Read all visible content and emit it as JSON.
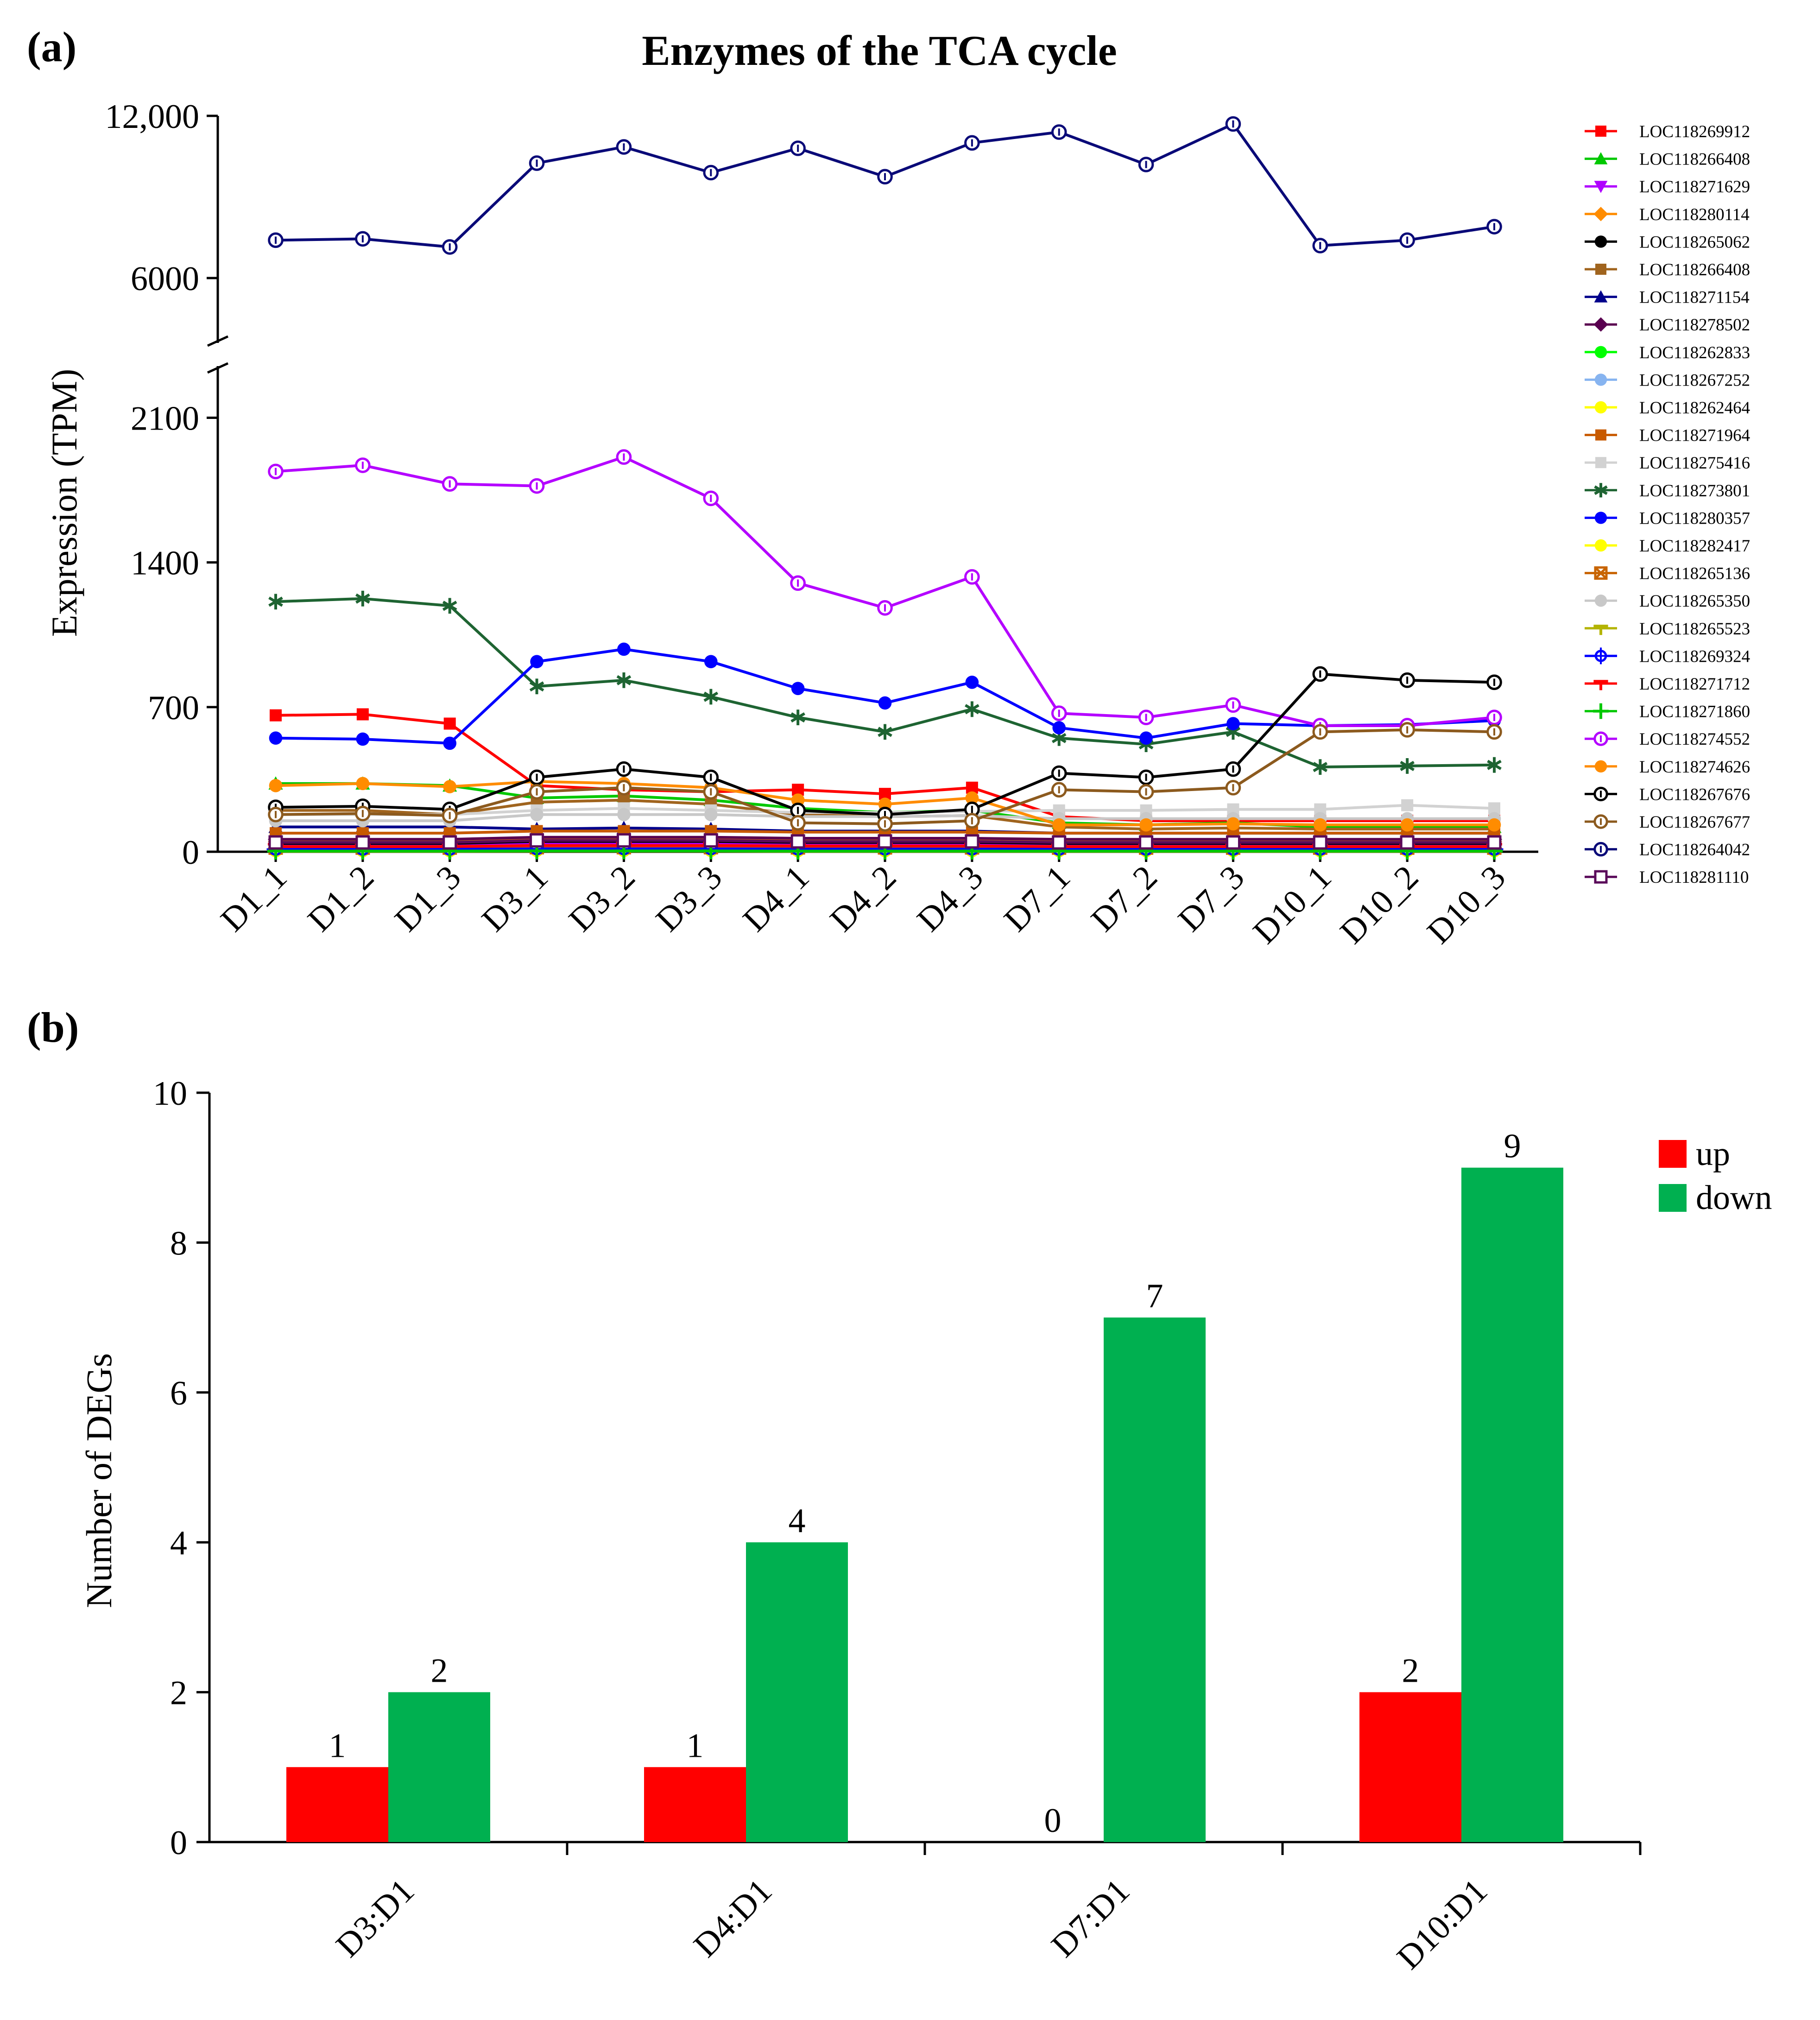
{
  "chart_data": [
    {
      "panel": "(a)",
      "type": "line",
      "title": "Enzymes of the TCA cycle",
      "xlabel": "",
      "ylabel": "Expression (TPM)",
      "categories": [
        "D1_1",
        "D1_2",
        "D1_3",
        "D3_1",
        "D3_2",
        "D3_3",
        "D4_1",
        "D4_2",
        "D4_3",
        "D7_1",
        "D7_2",
        "D7_3",
        "D10_1",
        "D10_2",
        "D10_3"
      ],
      "y_axis_broken": true,
      "lower_ylim": [
        0,
        2350
      ],
      "lower_ticks": [
        0,
        700,
        1400,
        2100
      ],
      "lower_tick_labels": [
        "0",
        "700",
        "1400",
        "2100"
      ],
      "upper_ylim": [
        3600,
        12000
      ],
      "upper_ticks": [
        6000,
        12000
      ],
      "upper_tick_labels": [
        "6000",
        "12,000"
      ],
      "series": [
        {
          "name": "LOC118269912",
          "color": "#ff0000",
          "marker": "square",
          "values": [
            660,
            665,
            620,
            320,
            300,
            290,
            300,
            280,
            310,
            170,
            150,
            150,
            150,
            150,
            150
          ]
        },
        {
          "name": "LOC118266408",
          "color": "#00c800",
          "marker": "triangle",
          "values": [
            330,
            330,
            320,
            260,
            270,
            250,
            210,
            190,
            200,
            140,
            130,
            140,
            120,
            120,
            120
          ]
        },
        {
          "name": "LOC118271629",
          "color": "#b000ff",
          "marker": "triangle-down",
          "values": [
            30,
            30,
            30,
            40,
            40,
            40,
            35,
            35,
            35,
            30,
            30,
            30,
            30,
            30,
            30
          ]
        },
        {
          "name": "LOC118280114",
          "color": "#ff8c00",
          "marker": "diamond",
          "values": [
            50,
            50,
            50,
            60,
            60,
            60,
            55,
            55,
            55,
            50,
            50,
            50,
            50,
            50,
            50
          ]
        },
        {
          "name": "LOC118265062",
          "color": "#000000",
          "marker": "circle",
          "values": [
            40,
            40,
            40,
            50,
            50,
            50,
            45,
            45,
            45,
            40,
            40,
            40,
            40,
            40,
            40
          ]
        },
        {
          "name": "LOC118266408",
          "color": "#a0641e",
          "marker": "square",
          "values": [
            200,
            200,
            180,
            240,
            250,
            230,
            180,
            170,
            175,
            120,
            110,
            115,
            110,
            110,
            110
          ]
        },
        {
          "name": "LOC118271154",
          "color": "#00008b",
          "marker": "triangle",
          "values": [
            120,
            120,
            120,
            110,
            115,
            110,
            100,
            100,
            100,
            90,
            90,
            90,
            90,
            90,
            90
          ]
        },
        {
          "name": "LOC118278502",
          "color": "#5a0050",
          "marker": "diamond",
          "values": [
            60,
            60,
            60,
            70,
            70,
            70,
            65,
            65,
            65,
            60,
            60,
            60,
            60,
            60,
            60
          ]
        },
        {
          "name": "LOC118262833",
          "color": "#00ff00",
          "marker": "circle",
          "values": [
            10,
            10,
            10,
            12,
            12,
            12,
            11,
            11,
            11,
            10,
            10,
            10,
            10,
            10,
            10
          ]
        },
        {
          "name": "LOC118267252",
          "color": "#87b4f0",
          "marker": "circle",
          "values": [
            15,
            15,
            15,
            18,
            18,
            18,
            16,
            16,
            16,
            15,
            15,
            15,
            15,
            15,
            15
          ]
        },
        {
          "name": "LOC118262464",
          "color": "#ffff00",
          "marker": "circle",
          "values": [
            5,
            5,
            5,
            6,
            6,
            6,
            5,
            5,
            5,
            5,
            5,
            5,
            5,
            5,
            5
          ]
        },
        {
          "name": "LOC118271964",
          "color": "#c85a00",
          "marker": "square",
          "values": [
            90,
            90,
            90,
            100,
            100,
            100,
            95,
            95,
            95,
            90,
            90,
            90,
            90,
            90,
            90
          ]
        },
        {
          "name": "LOC118275416",
          "color": "#d2d2d2",
          "marker": "square",
          "values": [
            180,
            180,
            180,
            200,
            210,
            200,
            190,
            190,
            195,
            200,
            200,
            205,
            205,
            225,
            210
          ]
        },
        {
          "name": "LOC118273801",
          "color": "#1e6432",
          "marker": "asterisk",
          "values": [
            1210,
            1225,
            1190,
            800,
            830,
            750,
            650,
            580,
            690,
            550,
            520,
            580,
            410,
            415,
            420
          ]
        },
        {
          "name": "LOC118280357",
          "color": "#0000ff",
          "marker": "circle",
          "values": [
            550,
            545,
            525,
            920,
            980,
            920,
            790,
            720,
            820,
            600,
            550,
            620,
            610,
            615,
            635
          ]
        },
        {
          "name": "LOC118282417",
          "color": "#ffff00",
          "marker": "circle",
          "values": [
            8,
            8,
            8,
            9,
            9,
            9,
            8,
            8,
            8,
            8,
            8,
            8,
            8,
            8,
            8
          ]
        },
        {
          "name": "LOC118265136",
          "color": "#c86400",
          "marker": "square-x",
          "values": [
            20,
            20,
            20,
            22,
            22,
            22,
            21,
            21,
            21,
            20,
            20,
            20,
            20,
            20,
            20
          ]
        },
        {
          "name": "LOC118265350",
          "color": "#c8c8c8",
          "marker": "circle",
          "values": [
            150,
            150,
            150,
            180,
            180,
            180,
            170,
            170,
            175,
            160,
            160,
            160,
            160,
            160,
            160
          ]
        },
        {
          "name": "LOC118265523",
          "color": "#b4b400",
          "marker": "tick",
          "values": [
            2,
            2,
            2,
            3,
            3,
            3,
            2,
            2,
            2,
            2,
            2,
            2,
            2,
            2,
            2
          ]
        },
        {
          "name": "LOC118269324",
          "color": "#0000ff",
          "marker": "circle-plus",
          "values": [
            12,
            12,
            12,
            14,
            14,
            14,
            13,
            13,
            13,
            12,
            12,
            12,
            12,
            12,
            12
          ]
        },
        {
          "name": "LOC118271712",
          "color": "#ff0000",
          "marker": "tick",
          "values": [
            25,
            25,
            25,
            30,
            30,
            30,
            28,
            28,
            28,
            25,
            25,
            25,
            25,
            25,
            25
          ]
        },
        {
          "name": "LOC118271860",
          "color": "#00c800",
          "marker": "plus",
          "values": [
            3,
            3,
            3,
            4,
            4,
            4,
            3,
            3,
            3,
            3,
            3,
            3,
            3,
            3,
            3
          ]
        },
        {
          "name": "LOC118274552",
          "color": "#b400ff",
          "marker": "circle-open",
          "values": [
            1840,
            1870,
            1780,
            1770,
            1910,
            1710,
            1300,
            1180,
            1330,
            670,
            650,
            710,
            610,
            610,
            650
          ]
        },
        {
          "name": "LOC118274626",
          "color": "#ff8c00",
          "marker": "circle",
          "values": [
            320,
            330,
            315,
            340,
            330,
            310,
            250,
            230,
            260,
            130,
            130,
            135,
            130,
            130,
            130
          ]
        },
        {
          "name": "LOC118267676",
          "color": "#000000",
          "marker": "circle-open",
          "values": [
            215,
            220,
            205,
            360,
            400,
            360,
            200,
            180,
            205,
            380,
            360,
            400,
            860,
            830,
            820
          ]
        },
        {
          "name": "LOC118267677",
          "color": "#8c5a1e",
          "marker": "circle-open",
          "values": [
            180,
            185,
            175,
            290,
            310,
            290,
            140,
            135,
            150,
            300,
            290,
            310,
            580,
            590,
            580
          ]
        },
        {
          "name": "LOC118264042",
          "color": "#0a0a78",
          "marker": "circle-open",
          "upper": true,
          "values": [
            7400,
            7450,
            7150,
            10250,
            10850,
            9900,
            10800,
            9750,
            11000,
            11400,
            10200,
            11700,
            7200,
            7400,
            7900
          ]
        },
        {
          "name": "LOC118281110",
          "color": "#5a0a5a",
          "marker": "square-open",
          "values": [
            45,
            45,
            45,
            55,
            55,
            55,
            50,
            50,
            50,
            45,
            45,
            45,
            45,
            45,
            45
          ]
        }
      ]
    },
    {
      "panel": "(b)",
      "type": "bar",
      "title": "",
      "xlabel": "",
      "ylabel": "Number of DEGs",
      "categories": [
        "D3:D1",
        "D4:D1",
        "D7:D1",
        "D10:D1"
      ],
      "ylim": [
        0,
        10
      ],
      "ticks": [
        0,
        2,
        4,
        6,
        8,
        10
      ],
      "tick_labels": [
        "0",
        "2",
        "4",
        "6",
        "8",
        "10"
      ],
      "legend_position": "top-right",
      "series": [
        {
          "name": "up",
          "color": "#ff0000",
          "values": [
            1,
            1,
            0,
            2
          ],
          "labels": [
            "1",
            "1",
            "0",
            "2"
          ]
        },
        {
          "name": "down",
          "color": "#00b050",
          "values": [
            2,
            4,
            7,
            9
          ],
          "labels": [
            "2",
            "4",
            "7",
            "9"
          ]
        }
      ]
    }
  ]
}
